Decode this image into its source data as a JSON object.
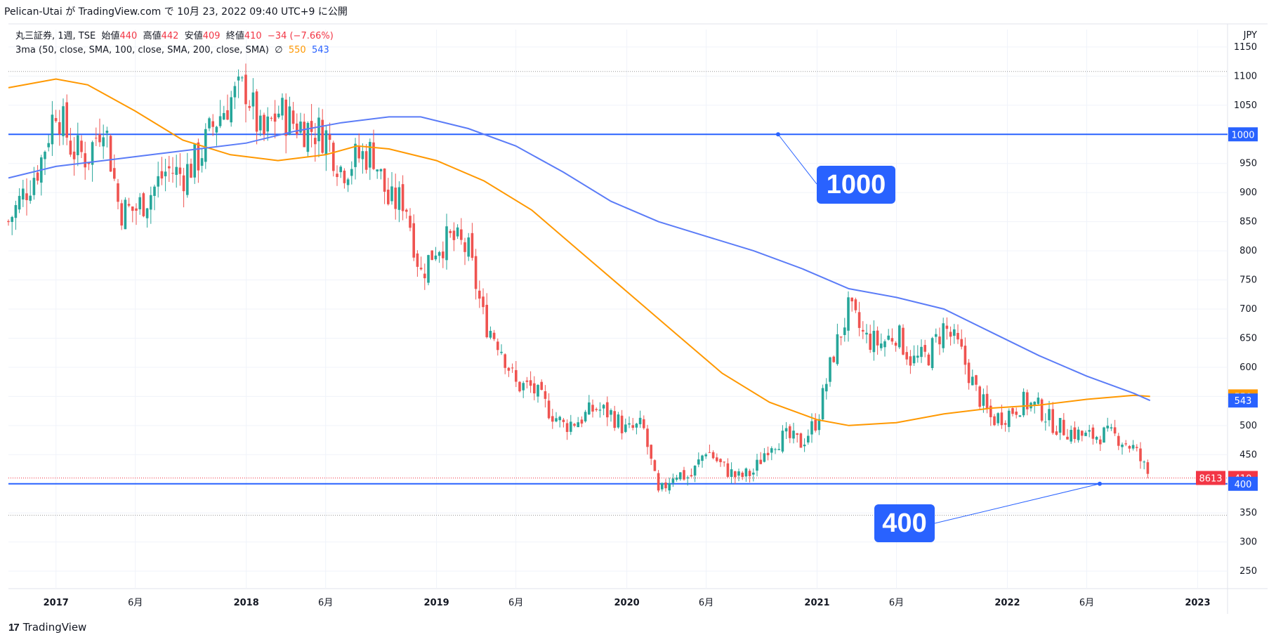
{
  "header": {
    "publish_line": "Pelican-Utai が TradingView.com で 10月 23, 2022 09:40 UTC+9 に公開"
  },
  "legend": {
    "symbol_info": "丸三証券, 1週, TSE",
    "open_label": "始値",
    "open_value": "440",
    "high_label": "高値",
    "high_value": "442",
    "low_label": "安値",
    "low_value": "409",
    "close_label": "終値",
    "close_value": "410",
    "change": "−34 (−7.66%)",
    "indicator": "3ma (50, close, SMA, 100, close, SMA, 200, close, SMA)",
    "indicator_sep": "∅",
    "ma100_value": "550",
    "ma200_value": "543"
  },
  "annotations": {
    "callout_upper": "1000",
    "callout_lower": "400"
  },
  "price_axis": {
    "currency": "JPY",
    "ticks": [
      "1150",
      "1100",
      "1050",
      "1000",
      "950",
      "900",
      "850",
      "800",
      "750",
      "700",
      "650",
      "600",
      "550",
      "500",
      "450",
      "400",
      "350",
      "300",
      "250"
    ],
    "badges": [
      {
        "label": "1000",
        "value": 1000,
        "color": "#2962ff"
      },
      {
        "label": "550",
        "value": 550,
        "color": "#ff9800"
      },
      {
        "label": "543",
        "value": 543,
        "color": "#2962ff"
      },
      {
        "label": "410",
        "value": 410,
        "color": "#f23645"
      },
      {
        "label": "400",
        "value": 400,
        "color": "#2962ff"
      }
    ],
    "volume_badge": "8613"
  },
  "time_axis": {
    "ticks": [
      {
        "label": "2017",
        "bold": true
      },
      {
        "label": "6月",
        "bold": false
      },
      {
        "label": "2018",
        "bold": true
      },
      {
        "label": "6月",
        "bold": false
      },
      {
        "label": "2019",
        "bold": true
      },
      {
        "label": "6月",
        "bold": false
      },
      {
        "label": "2020",
        "bold": true
      },
      {
        "label": "6月",
        "bold": false
      },
      {
        "label": "2021",
        "bold": true
      },
      {
        "label": "6月",
        "bold": false
      },
      {
        "label": "2022",
        "bold": true
      },
      {
        "label": "6月",
        "bold": false
      },
      {
        "label": "2023",
        "bold": true
      }
    ]
  },
  "footer": {
    "logo": "17",
    "brand": "TradingView"
  },
  "chart_data": {
    "type": "candlestick",
    "symbol": "丸三証券",
    "interval": "1週",
    "exchange": "TSE",
    "currency": "JPY",
    "ylim": [
      220,
      1180
    ],
    "x_range": [
      "2016-10",
      "2023-02"
    ],
    "grid": true,
    "colors": {
      "up": "#26a69a",
      "down": "#ef5350",
      "ma100": "#ff9800",
      "ma200": "#5b7cf7",
      "hline": "#2962ff"
    },
    "horizontal_lines": [
      {
        "value": 1000,
        "color": "#2962ff",
        "style": "solid"
      },
      {
        "value": 400,
        "color": "#2962ff",
        "style": "solid"
      },
      {
        "value": 1108,
        "color": "#999999",
        "style": "dotted"
      },
      {
        "value": 346,
        "color": "#999999",
        "style": "dotted"
      },
      {
        "value": 410,
        "color": "#f23645",
        "style": "dotted"
      }
    ],
    "price_path": [
      {
        "t": "2016-10",
        "v": 850
      },
      {
        "t": "2016-12",
        "v": 950
      },
      {
        "t": "2017-01",
        "v": 1050
      },
      {
        "t": "2017-02",
        "v": 975
      },
      {
        "t": "2017-03",
        "v": 960
      },
      {
        "t": "2017-04",
        "v": 1030
      },
      {
        "t": "2017-05",
        "v": 870
      },
      {
        "t": "2017-06",
        "v": 870
      },
      {
        "t": "2017-07",
        "v": 900
      },
      {
        "t": "2017-08",
        "v": 940
      },
      {
        "t": "2017-09",
        "v": 930
      },
      {
        "t": "2017-10",
        "v": 960
      },
      {
        "t": "2017-11",
        "v": 1020
      },
      {
        "t": "2017-12",
        "v": 1060
      },
      {
        "t": "2018-01",
        "v": 1080
      },
      {
        "t": "2018-02",
        "v": 990
      },
      {
        "t": "2018-03",
        "v": 1040
      },
      {
        "t": "2018-04",
        "v": 1020
      },
      {
        "t": "2018-05",
        "v": 1010
      },
      {
        "t": "2018-06",
        "v": 1000
      },
      {
        "t": "2018-07",
        "v": 940
      },
      {
        "t": "2018-08",
        "v": 960
      },
      {
        "t": "2018-09",
        "v": 970
      },
      {
        "t": "2018-10",
        "v": 880
      },
      {
        "t": "2018-11",
        "v": 890
      },
      {
        "t": "2018-12",
        "v": 760
      },
      {
        "t": "2019-01",
        "v": 810
      },
      {
        "t": "2019-02",
        "v": 820
      },
      {
        "t": "2019-03",
        "v": 800
      },
      {
        "t": "2019-04",
        "v": 680
      },
      {
        "t": "2019-05",
        "v": 640
      },
      {
        "t": "2019-06",
        "v": 570
      },
      {
        "t": "2019-07",
        "v": 565
      },
      {
        "t": "2019-08",
        "v": 530
      },
      {
        "t": "2019-09",
        "v": 500
      },
      {
        "t": "2019-10",
        "v": 510
      },
      {
        "t": "2019-11",
        "v": 530
      },
      {
        "t": "2019-12",
        "v": 520
      },
      {
        "t": "2020-01",
        "v": 490
      },
      {
        "t": "2020-02",
        "v": 500
      },
      {
        "t": "2020-03",
        "v": 380
      },
      {
        "t": "2020-04",
        "v": 420
      },
      {
        "t": "2020-05",
        "v": 410
      },
      {
        "t": "2020-06",
        "v": 460
      },
      {
        "t": "2020-07",
        "v": 430
      },
      {
        "t": "2020-08",
        "v": 410
      },
      {
        "t": "2020-09",
        "v": 420
      },
      {
        "t": "2020-10",
        "v": 470
      },
      {
        "t": "2020-11",
        "v": 480
      },
      {
        "t": "2020-12",
        "v": 470
      },
      {
        "t": "2021-01",
        "v": 510
      },
      {
        "t": "2021-02",
        "v": 620
      },
      {
        "t": "2021-03",
        "v": 700
      },
      {
        "t": "2021-04",
        "v": 650
      },
      {
        "t": "2021-05",
        "v": 640
      },
      {
        "t": "2021-06",
        "v": 660
      },
      {
        "t": "2021-07",
        "v": 610
      },
      {
        "t": "2021-08",
        "v": 620
      },
      {
        "t": "2021-09",
        "v": 670
      },
      {
        "t": "2021-10",
        "v": 630
      },
      {
        "t": "2021-11",
        "v": 560
      },
      {
        "t": "2021-12",
        "v": 510
      },
      {
        "t": "2022-01",
        "v": 520
      },
      {
        "t": "2022-02",
        "v": 540
      },
      {
        "t": "2022-03",
        "v": 530
      },
      {
        "t": "2022-04",
        "v": 500
      },
      {
        "t": "2022-05",
        "v": 490
      },
      {
        "t": "2022-06",
        "v": 480
      },
      {
        "t": "2022-07",
        "v": 485
      },
      {
        "t": "2022-08",
        "v": 480
      },
      {
        "t": "2022-09",
        "v": 460
      },
      {
        "t": "2022-10",
        "v": 410
      }
    ],
    "series": [
      {
        "name": "SMA 100",
        "values": [
          {
            "t": "2016-10",
            "v": 1080
          },
          {
            "t": "2017-01",
            "v": 1095
          },
          {
            "t": "2017-03",
            "v": 1085
          },
          {
            "t": "2017-06",
            "v": 1040
          },
          {
            "t": "2017-09",
            "v": 990
          },
          {
            "t": "2017-12",
            "v": 965
          },
          {
            "t": "2018-03",
            "v": 955
          },
          {
            "t": "2018-06",
            "v": 965
          },
          {
            "t": "2018-08",
            "v": 980
          },
          {
            "t": "2018-10",
            "v": 975
          },
          {
            "t": "2019-01",
            "v": 955
          },
          {
            "t": "2019-04",
            "v": 920
          },
          {
            "t": "2019-07",
            "v": 870
          },
          {
            "t": "2019-10",
            "v": 800
          },
          {
            "t": "2020-01",
            "v": 730
          },
          {
            "t": "2020-04",
            "v": 660
          },
          {
            "t": "2020-07",
            "v": 590
          },
          {
            "t": "2020-10",
            "v": 540
          },
          {
            "t": "2021-01",
            "v": 510
          },
          {
            "t": "2021-03",
            "v": 500
          },
          {
            "t": "2021-06",
            "v": 505
          },
          {
            "t": "2021-09",
            "v": 520
          },
          {
            "t": "2021-12",
            "v": 530
          },
          {
            "t": "2022-03",
            "v": 535
          },
          {
            "t": "2022-06",
            "v": 545
          },
          {
            "t": "2022-09",
            "v": 552
          },
          {
            "t": "2022-10",
            "v": 550
          }
        ]
      },
      {
        "name": "SMA 200",
        "values": [
          {
            "t": "2016-10",
            "v": 925
          },
          {
            "t": "2017-01",
            "v": 945
          },
          {
            "t": "2017-04",
            "v": 955
          },
          {
            "t": "2017-07",
            "v": 965
          },
          {
            "t": "2017-10",
            "v": 975
          },
          {
            "t": "2018-01",
            "v": 985
          },
          {
            "t": "2018-04",
            "v": 1005
          },
          {
            "t": "2018-07",
            "v": 1020
          },
          {
            "t": "2018-10",
            "v": 1030
          },
          {
            "t": "2018-12",
            "v": 1030
          },
          {
            "t": "2019-03",
            "v": 1010
          },
          {
            "t": "2019-06",
            "v": 980
          },
          {
            "t": "2019-09",
            "v": 935
          },
          {
            "t": "2019-12",
            "v": 885
          },
          {
            "t": "2020-03",
            "v": 850
          },
          {
            "t": "2020-06",
            "v": 825
          },
          {
            "t": "2020-09",
            "v": 800
          },
          {
            "t": "2020-12",
            "v": 770
          },
          {
            "t": "2021-03",
            "v": 735
          },
          {
            "t": "2021-06",
            "v": 720
          },
          {
            "t": "2021-09",
            "v": 700
          },
          {
            "t": "2021-12",
            "v": 660
          },
          {
            "t": "2022-03",
            "v": 620
          },
          {
            "t": "2022-06",
            "v": 585
          },
          {
            "t": "2022-09",
            "v": 555
          },
          {
            "t": "2022-10",
            "v": 543
          }
        ]
      }
    ]
  }
}
